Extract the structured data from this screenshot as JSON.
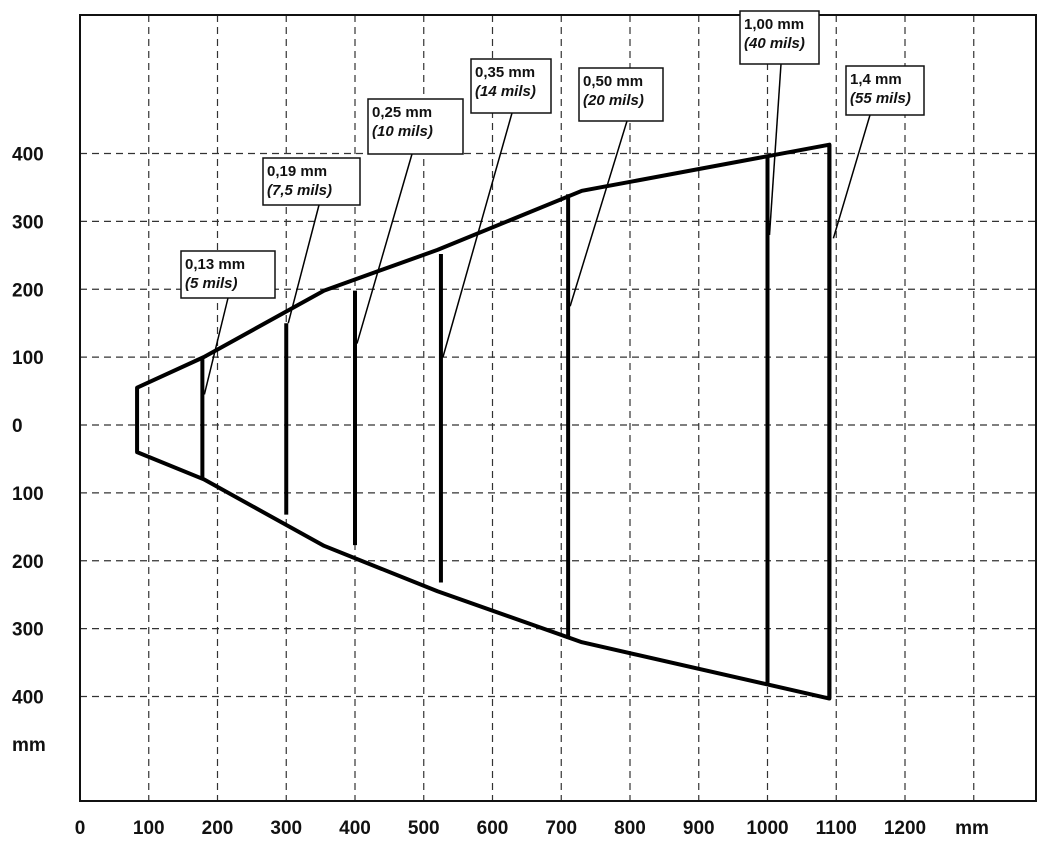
{
  "chart_data": {
    "type": "line",
    "title": "",
    "xlabel": "mm",
    "ylabel": "mm",
    "xlim": [
      0,
      1200
    ],
    "ylim": [
      -400,
      400
    ],
    "x_ticks": [
      "0",
      "100",
      "200",
      "300",
      "400",
      "500",
      "600",
      "700",
      "800",
      "900",
      "1000",
      "1100",
      "1200"
    ],
    "y_ticks_top": [
      "400",
      "300",
      "200",
      "100",
      "0"
    ],
    "y_ticks_bottom": [
      "100",
      "200",
      "300",
      "400"
    ],
    "grid": true,
    "envelope": {
      "upper": [
        [
          83,
          55
        ],
        [
          180,
          100
        ],
        [
          355,
          198
        ],
        [
          520,
          258
        ],
        [
          730,
          345
        ],
        [
          1090,
          413
        ]
      ],
      "lower": [
        [
          83,
          -40
        ],
        [
          180,
          -80
        ],
        [
          355,
          -178
        ],
        [
          520,
          -245
        ],
        [
          730,
          -320
        ],
        [
          1090,
          -403
        ]
      ]
    },
    "series": [
      {
        "mm": "0,13 mm",
        "mils": "5 mils",
        "x": 178,
        "y_top": 97,
        "y_bottom": -79,
        "pointer_target_y": 45
      },
      {
        "mm": "0,19 mm",
        "mils": "7,5 mils",
        "x": 300,
        "y_top": 150,
        "y_bottom": -132,
        "pointer_target_y": 150
      },
      {
        "mm": "0,25 mm",
        "mils": "10 mils",
        "x": 400,
        "y_top": 198,
        "y_bottom": -177,
        "pointer_target_y": 120
      },
      {
        "mm": "0,35 mm",
        "mils": "14 mils",
        "x": 525,
        "y_top": 252,
        "y_bottom": -232,
        "pointer_target_y": 100
      },
      {
        "mm": "0,50 mm",
        "mils": "20 mils",
        "x": 710,
        "y_top": 340,
        "y_bottom": -315,
        "pointer_target_y": 175
      },
      {
        "mm": "1,00 mm",
        "mils": "40 mils",
        "x": 1000,
        "y_top": 397,
        "y_bottom": -380,
        "pointer_target_y": 280
      },
      {
        "mm": "1,4 mm",
        "mils": "55 mils",
        "x": 1090,
        "y_top": 413,
        "y_bottom": -403,
        "pointer_target_y": 275
      }
    ]
  }
}
